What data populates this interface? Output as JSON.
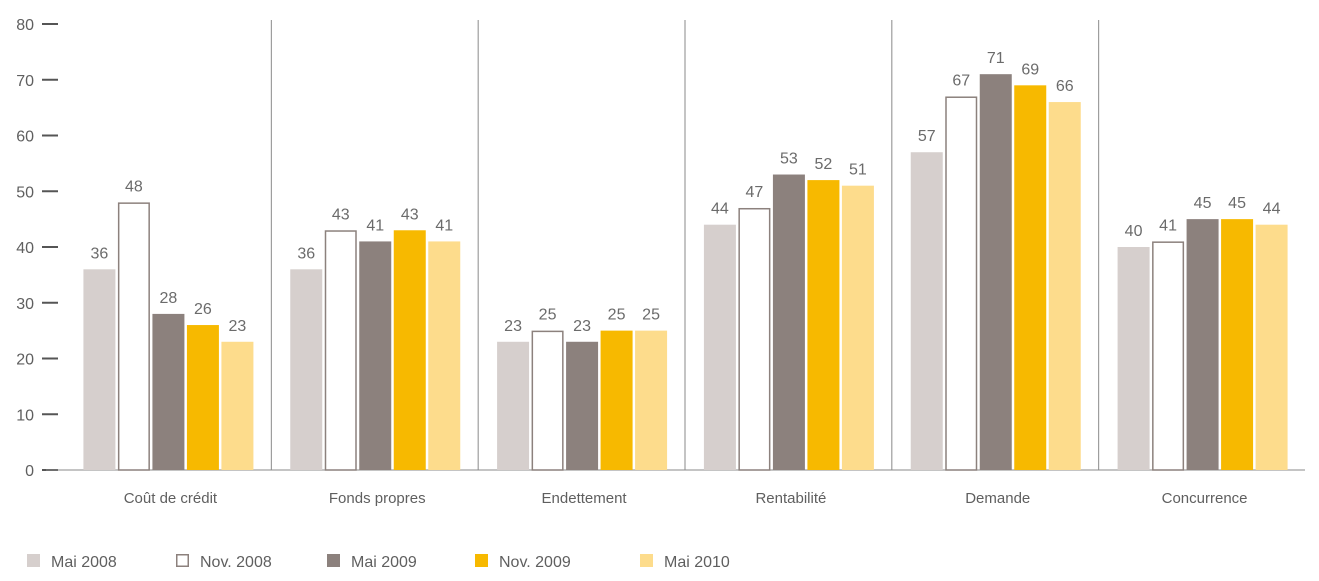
{
  "chart_data": {
    "type": "bar",
    "title": "",
    "xlabel": "",
    "ylabel": "",
    "ylim": [
      0,
      80
    ],
    "yticks": [
      0,
      10,
      20,
      30,
      40,
      50,
      60,
      70,
      80
    ],
    "grid": false,
    "legend_position": "bottom-left",
    "categories": [
      "Coût de crédit",
      "Fonds propres",
      "Endettement",
      "Rentabilité",
      "Demande",
      "Concurrence"
    ],
    "series": [
      {
        "name": "Mai 2008",
        "color": "#d6cfcd",
        "style": "filled",
        "values": [
          36,
          36,
          23,
          44,
          57,
          40
        ]
      },
      {
        "name": "Nov. 2008",
        "color": "#ffffff",
        "stroke": "#8c817d",
        "style": "outline",
        "values": [
          48,
          43,
          25,
          47,
          67,
          41
        ]
      },
      {
        "name": "Mai 2009",
        "color": "#8c817d",
        "style": "filled",
        "values": [
          28,
          41,
          23,
          53,
          71,
          45
        ]
      },
      {
        "name": "Nov. 2009",
        "color": "#f7b900",
        "style": "filled",
        "values": [
          26,
          43,
          25,
          52,
          69,
          45
        ]
      },
      {
        "name": "Mai 2010",
        "color": "#fddc8c",
        "style": "filled",
        "values": [
          23,
          41,
          25,
          51,
          66,
          44
        ]
      }
    ]
  }
}
